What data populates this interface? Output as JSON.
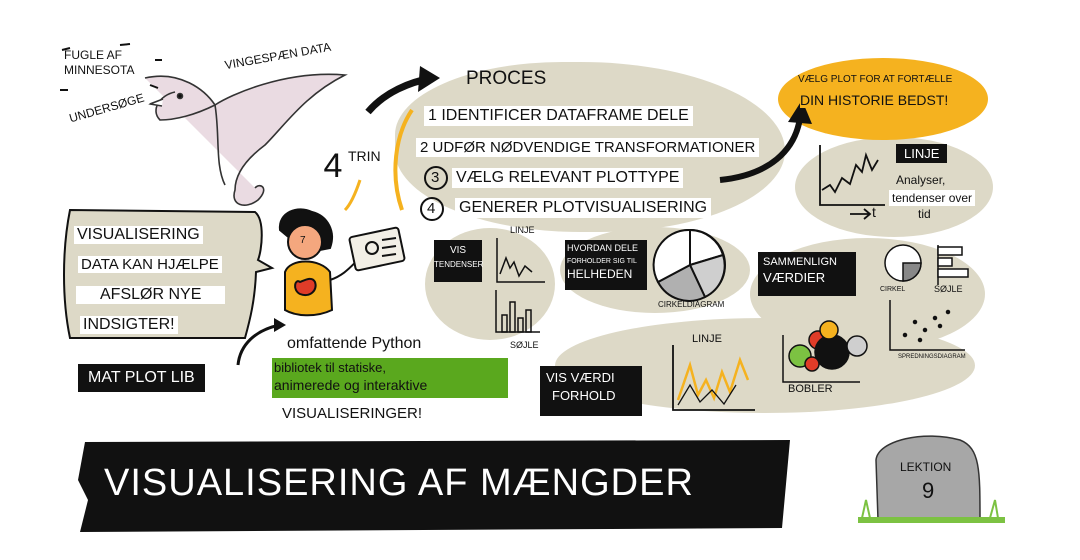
{
  "top_notes": {
    "birds": "FUGLE AF\nMINNESOTA",
    "wingspan": "VINGESPÆN DATA",
    "explore": "UNDERSØGE"
  },
  "steps": {
    "count": "4",
    "word": "TRIN",
    "heading": "PROCES",
    "items": [
      {
        "num": "1",
        "text": "IDENTIFICER DATAFRAME DELE"
      },
      {
        "num": "2",
        "text": "UDFØR NØDVENDIGE TRANSFORMATIONER"
      },
      {
        "num": "3",
        "text": "VÆLG RELEVANT PLOTTYPE"
      },
      {
        "num": "4",
        "text": "GENERER PLOTVISUALISERING"
      }
    ]
  },
  "story": {
    "line1": "VÆLG PLOT FOR AT FORTÆLLE",
    "line2": "DIN HISTORIE BEDST!"
  },
  "trend_panel": {
    "label": "LINJE",
    "caption_1": "Analyser,",
    "caption_2": "tendenser over",
    "caption_3": "tid",
    "axis_t": "t"
  },
  "speech": {
    "l1": "VISUALISERING",
    "l2": "DATA KAN HJÆLPE",
    "l3": "AFSLØR NYE",
    "l4": "INDSIGTER!"
  },
  "person_badge": "7",
  "vis_trends": {
    "title": "VIS",
    "sub": "TENDENSER",
    "line_label": "LINJE",
    "bar_label": "SØJLE"
  },
  "parts": {
    "l1": "HVORDAN DELE",
    "l2": "FORHOLDER SIG TIL",
    "l3": "HELHEDEN",
    "pie_label": "CIRKELDIAGRAM"
  },
  "compare": {
    "l1": "SAMMENLIGN",
    "l2": "VÆRDIER",
    "pie_label": "CIRKEL",
    "bar_label": "SØJLE",
    "scatter_label": "SPREDNINGSDIAGRAM"
  },
  "relation": {
    "l1": "VIS VÆRDI",
    "l2": "FORHOLD",
    "line_label": "LINJE",
    "bubble_label": "BOBLER"
  },
  "matplotlib": {
    "name": "MAT PLOT LIB"
  },
  "python": {
    "l1": "omfattende Python",
    "l2": "bibliotek til statiske,",
    "l3": "animerede og interaktive",
    "l4": "VISUALISERINGER!"
  },
  "banner": {
    "title": "VISUALISERING AF MÆNGDER"
  },
  "lesson": {
    "label": "LEKTION",
    "number": "9"
  },
  "colors": {
    "accent_orange": "#f5b21f",
    "highlight_green": "#5aa81e",
    "blob": "#ddd9c7",
    "bird": "#eadbe2"
  }
}
